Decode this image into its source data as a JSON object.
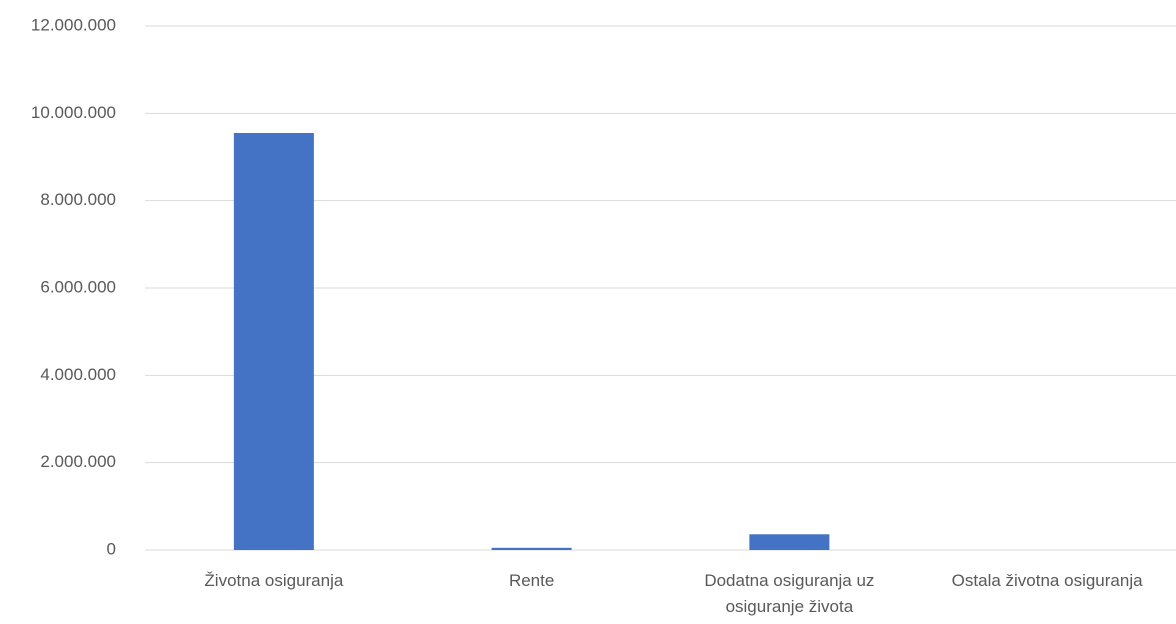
{
  "chart_data": {
    "type": "bar",
    "categories": [
      "Životna osiguranja",
      "Rente",
      "Dodatna osiguranja uz osiguranje života",
      "Ostala životna osiguranja"
    ],
    "values": [
      9550000,
      50000,
      360000,
      0
    ],
    "color": "#4472c4",
    "ylim": [
      0,
      12000000
    ],
    "yticks": [
      0,
      {
        "value": 2000000,
        "label": "2.000.000"
      },
      {
        "value": 4000000,
        "label": "4.000.000"
      },
      {
        "value": 6000000,
        "label": "6.000.000"
      },
      {
        "value": 8000000,
        "label": "8.000.000"
      },
      {
        "value": 10000000,
        "label": "10.000.000"
      },
      {
        "value": 12000000,
        "label": "12.000.000"
      }
    ],
    "grid": true
  }
}
